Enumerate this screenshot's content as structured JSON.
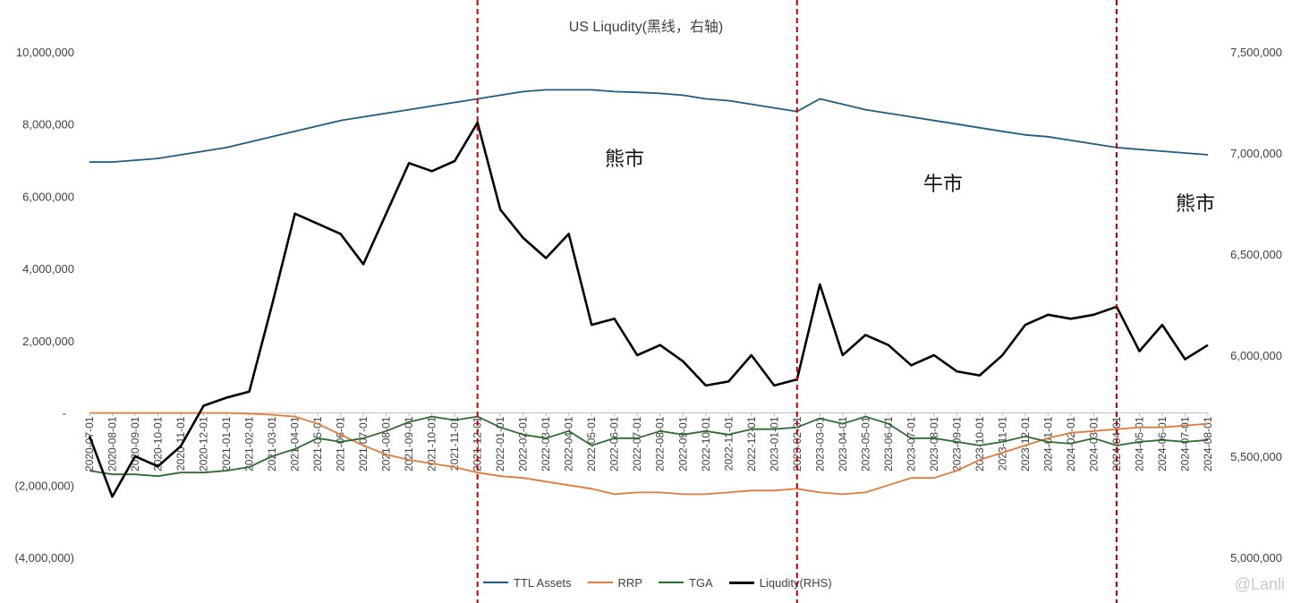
{
  "chart_data": {
    "type": "line",
    "title": "US Liqudity(黑线，右轴)",
    "left_axis": {
      "ticks": [
        "10,000,000",
        "8,000,000",
        "6,000,000",
        "4,000,000",
        "2,000,000",
        "-",
        "(2,000,000)",
        "(4,000,000)"
      ],
      "ylim": [
        -4000000,
        10000000
      ]
    },
    "right_axis": {
      "ticks": [
        "7,500,000",
        "7,000,000",
        "6,500,000",
        "6,000,000",
        "5,500,000",
        "5,000,000"
      ],
      "ylim": [
        5000000,
        7500000
      ]
    },
    "x": [
      "2020-07-01",
      "2020-08-01",
      "2020-09-01",
      "2020-10-01",
      "2020-11-01",
      "2020-12-01",
      "2021-01-01",
      "2021-02-01",
      "2021-03-01",
      "2021-04-01",
      "2021-05-01",
      "2021-06-01",
      "2021-07-01",
      "2021-08-01",
      "2021-09-01",
      "2021-10-01",
      "2021-11-01",
      "2021-12-01",
      "2022-01-01",
      "2022-02-01",
      "2022-03-01",
      "2022-04-01",
      "2022-05-01",
      "2022-06-01",
      "2022-07-01",
      "2022-08-01",
      "2022-09-01",
      "2022-10-01",
      "2022-11-01",
      "2022-12-01",
      "2023-01-01",
      "2023-02-01",
      "2023-03-01",
      "2023-04-01",
      "2023-05-01",
      "2023-06-01",
      "2023-07-01",
      "2023-08-01",
      "2023-09-01",
      "2023-10-01",
      "2023-11-01",
      "2023-12-01",
      "2024-01-01",
      "2024-02-01",
      "2024-03-01",
      "2024-04-01",
      "2024-05-01",
      "2024-06-01",
      "2024-07-01",
      "2024-08-01"
    ],
    "series": [
      {
        "name": "TTL Assets",
        "axis": "left",
        "color": "#1f5c82",
        "values": [
          6950000,
          6950000,
          7000000,
          7050000,
          7150000,
          7250000,
          7350000,
          7500000,
          7650000,
          7800000,
          7950000,
          8100000,
          8200000,
          8300000,
          8400000,
          8500000,
          8600000,
          8700000,
          8800000,
          8900000,
          8950000,
          8950000,
          8950000,
          8900000,
          8880000,
          8850000,
          8800000,
          8700000,
          8650000,
          8550000,
          8450000,
          8350000,
          8700000,
          8550000,
          8400000,
          8300000,
          8200000,
          8100000,
          8000000,
          7900000,
          7800000,
          7700000,
          7650000,
          7550000,
          7450000,
          7350000,
          7300000,
          7250000,
          7200000,
          7150000
        ]
      },
      {
        "name": "RRP",
        "axis": "left",
        "color": "#e07b39",
        "values": [
          0,
          0,
          0,
          0,
          0,
          0,
          0,
          -20000,
          -50000,
          -100000,
          -300000,
          -600000,
          -900000,
          -1150000,
          -1300000,
          -1400000,
          -1500000,
          -1650000,
          -1750000,
          -1800000,
          -1900000,
          -2000000,
          -2100000,
          -2250000,
          -2200000,
          -2200000,
          -2250000,
          -2250000,
          -2200000,
          -2150000,
          -2150000,
          -2100000,
          -2200000,
          -2250000,
          -2200000,
          -2000000,
          -1800000,
          -1800000,
          -1600000,
          -1300000,
          -1100000,
          -900000,
          -700000,
          -550000,
          -500000,
          -450000,
          -400000,
          -400000,
          -350000,
          -300000
        ]
      },
      {
        "name": "TGA",
        "axis": "left",
        "color": "#2f6b2f",
        "values": [
          -1600000,
          -1700000,
          -1700000,
          -1750000,
          -1650000,
          -1650000,
          -1600000,
          -1500000,
          -1200000,
          -1000000,
          -700000,
          -800000,
          -700000,
          -500000,
          -250000,
          -100000,
          -200000,
          -100000,
          -400000,
          -600000,
          -700000,
          -500000,
          -900000,
          -700000,
          -700000,
          -500000,
          -600000,
          -500000,
          -600000,
          -450000,
          -450000,
          -400000,
          -150000,
          -300000,
          -100000,
          -300000,
          -700000,
          -700000,
          -800000,
          -900000,
          -800000,
          -650000,
          -800000,
          -850000,
          -700000,
          -900000,
          -800000,
          -750000,
          -800000,
          -750000
        ]
      },
      {
        "name": "Liqudity(RHS)",
        "axis": "right",
        "color": "#000000",
        "values": [
          5600000,
          5300000,
          5500000,
          5450000,
          5550000,
          5750000,
          5790000,
          5820000,
          6250000,
          6700000,
          6650000,
          6600000,
          6450000,
          6700000,
          6950000,
          6910000,
          6960000,
          7150000,
          6720000,
          6580000,
          6480000,
          6600000,
          6150000,
          6180000,
          6000000,
          6050000,
          5970000,
          5850000,
          5870000,
          6000000,
          5850000,
          5880000,
          6350000,
          6000000,
          6100000,
          6050000,
          5950000,
          6000000,
          5920000,
          5900000,
          6000000,
          6150000,
          6200000,
          6180000,
          6200000,
          6240000,
          6020000,
          6150000,
          5980000,
          6050000
        ]
      }
    ],
    "vlines": [
      "2021-12-01",
      "2023-02-01",
      "2024-04-01"
    ],
    "annotations": [
      {
        "text": "熊市"
      },
      {
        "text": "牛市"
      },
      {
        "text": "熊市"
      }
    ],
    "legend": "bottom",
    "grid": false
  },
  "watermark": "@Lanli"
}
